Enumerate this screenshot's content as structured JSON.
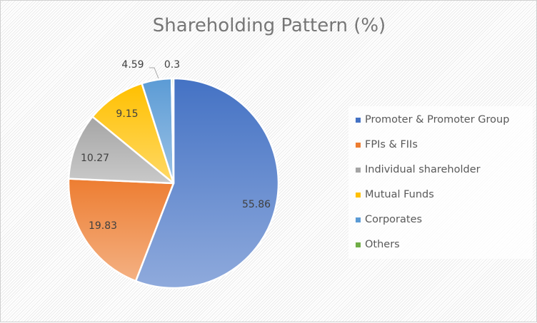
{
  "chart_data": {
    "type": "pie",
    "title": "Shareholding Pattern (%)",
    "categories": [
      "Promoter & Promoter Group",
      "FPIs & FIIs",
      "Individual shareholder",
      "Mutual Funds",
      "Corporates",
      "Others"
    ],
    "values": [
      55.86,
      19.83,
      10.27,
      9.15,
      4.59,
      0.3
    ],
    "data_labels": [
      "55.86",
      "19.83",
      "10.27",
      "9.15",
      "4.59",
      "0.3"
    ],
    "colors": [
      "#4472c4",
      "#ed7d31",
      "#a5a5a5",
      "#ffc000",
      "#5b9bd5",
      "#70ad47"
    ],
    "legend_position": "right",
    "xlabel": "",
    "ylabel": ""
  },
  "title": "Shareholding Pattern (%)",
  "legend": {
    "items": [
      {
        "label": "Promoter & Promoter Group",
        "color": "#4472c4"
      },
      {
        "label": "FPIs & FIIs",
        "color": "#ed7d31"
      },
      {
        "label": "Individual shareholder",
        "color": "#a5a5a5"
      },
      {
        "label": "Mutual Funds",
        "color": "#ffc000"
      },
      {
        "label": "Corporates",
        "color": "#5b9bd5"
      },
      {
        "label": "Others",
        "color": "#70ad47"
      }
    ]
  },
  "labels": {
    "promoter": "55.86",
    "fpi": "19.83",
    "individual": "10.27",
    "mutual": "9.15",
    "corporates": "4.59",
    "others": "0.3"
  }
}
